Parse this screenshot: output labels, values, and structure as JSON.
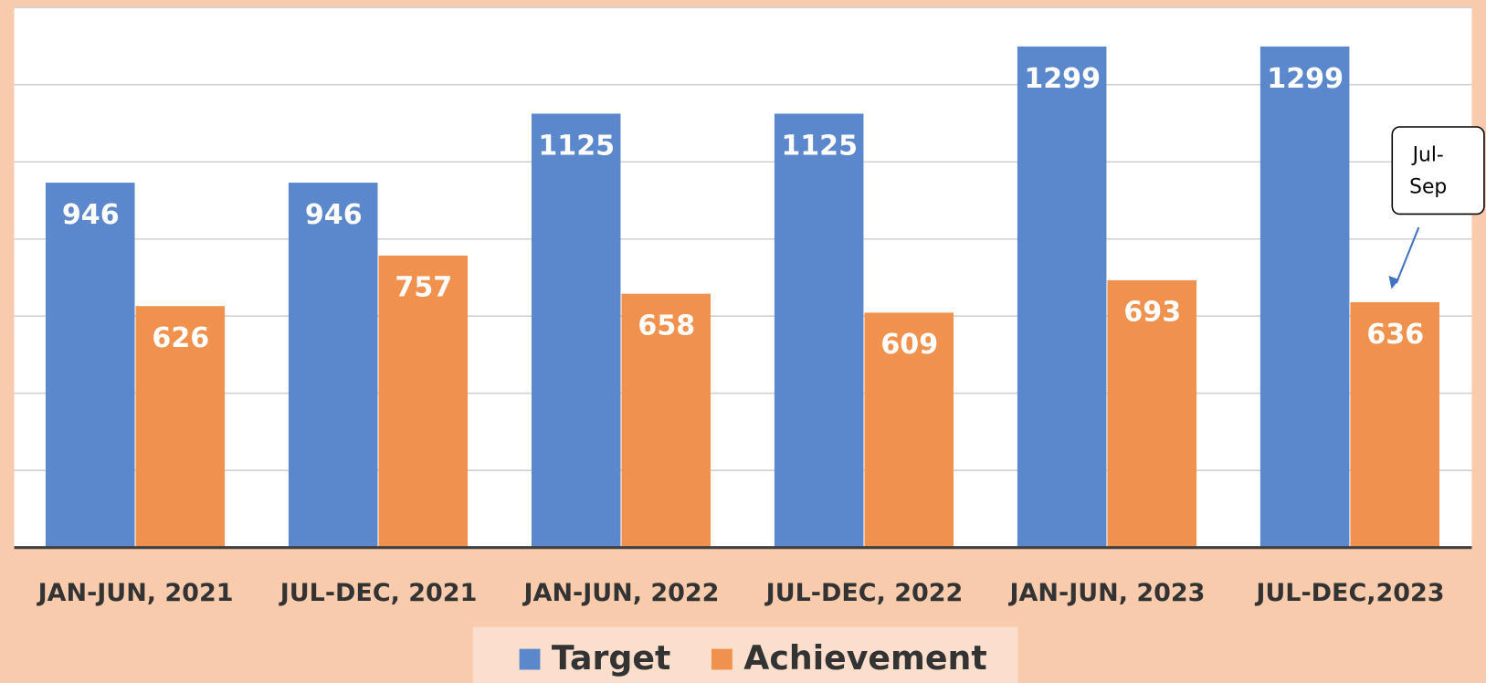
{
  "chart_data": {
    "type": "bar",
    "categories": [
      "JAN-JUN, 2021",
      "JUL-DEC, 2021",
      "JAN-JUN, 2022",
      "JUL-DEC, 2022",
      "JAN-JUN, 2023",
      "JUL-DEC,2023"
    ],
    "series": [
      {
        "name": "Target",
        "color": "#5b87cd",
        "values": [
          946,
          946,
          1125,
          1125,
          1299,
          1299
        ]
      },
      {
        "name": "Achievement",
        "color": "#f0914e",
        "values": [
          626,
          757,
          658,
          609,
          693,
          636
        ]
      }
    ],
    "ylim": [
      0,
      1400
    ],
    "yticks": [
      0,
      200,
      400,
      600,
      800,
      1000,
      1200,
      1400
    ],
    "grid": true,
    "legend": "bottom",
    "annotation": {
      "text": "Jul-Sep",
      "series": 1,
      "index": 5
    }
  }
}
